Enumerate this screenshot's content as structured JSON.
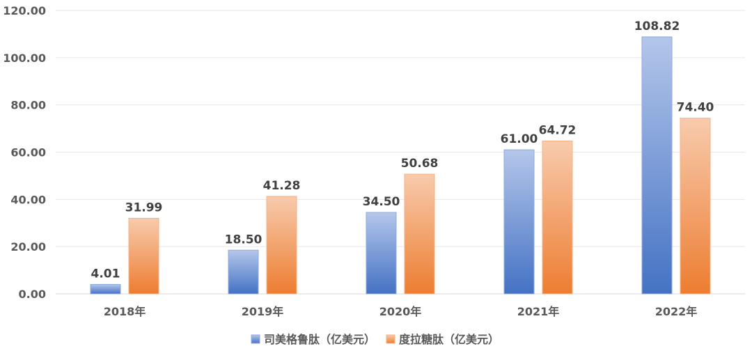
{
  "chart_data": {
    "type": "bar",
    "categories": [
      "2018年",
      "2019年",
      "2020年",
      "2021年",
      "2022年"
    ],
    "series": [
      {
        "name": "司美格鲁肽（亿美元）",
        "values": [
          4.01,
          18.5,
          34.5,
          61.0,
          108.82
        ],
        "color": "#4472c4"
      },
      {
        "name": "度拉糖肽（亿美元）",
        "values": [
          31.99,
          41.28,
          50.68,
          64.72,
          74.4
        ],
        "color": "#ed7d31"
      }
    ],
    "yticks": [
      "0.00",
      "20.00",
      "40.00",
      "60.00",
      "80.00",
      "100.00",
      "120.00"
    ],
    "ylim": [
      0,
      120
    ],
    "grid": true,
    "legend": "bottom-center",
    "title": "",
    "xlabel": "",
    "ylabel": ""
  }
}
